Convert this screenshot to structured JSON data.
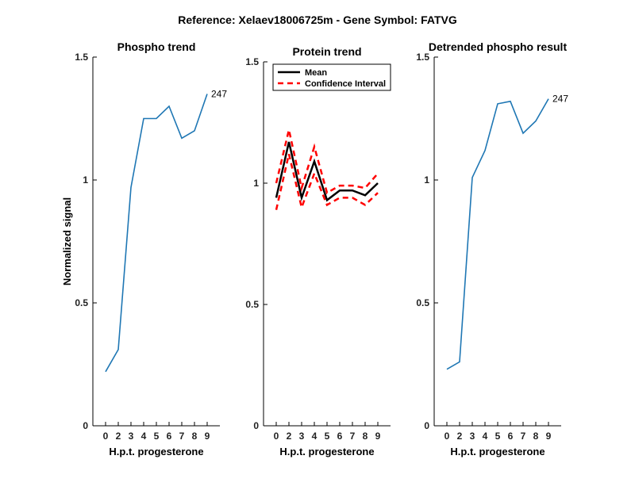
{
  "figure": {
    "suptitle": "Reference:  Xelaev18006725m - Gene Symbol:  FATVG"
  },
  "chart_data": [
    {
      "type": "line",
      "title": "Phospho trend",
      "xlabel": "H.p.t. progesterone",
      "ylabel": "Normalized signal",
      "categories": [
        "0",
        "2",
        "3",
        "4",
        "5",
        "6",
        "7",
        "8",
        "9"
      ],
      "ylim": [
        0,
        1.5
      ],
      "yticks": [
        0,
        0.5,
        1,
        1.5
      ],
      "ytick_labels": [
        "0",
        "0.5",
        "1",
        "1.5"
      ],
      "series": [
        {
          "values": [
            0.22,
            0.31,
            0.97,
            1.25,
            1.25,
            1.3,
            1.17,
            1.2,
            1.35
          ],
          "color": "#1f77b4",
          "style": "solid"
        }
      ],
      "annotation": "247"
    },
    {
      "type": "line",
      "title": "Protein trend",
      "xlabel": "H.p.t. progesterone",
      "ylabel": "",
      "categories": [
        "0",
        "2",
        "3",
        "4",
        "5",
        "6",
        "7",
        "8",
        "9"
      ],
      "ylim": [
        0,
        1.5
      ],
      "yticks": [
        0,
        0.5,
        1,
        1.5
      ],
      "ytick_labels": [
        "0",
        "0.5",
        "1",
        "1.5"
      ],
      "legend": {
        "position": "top-left",
        "entries": [
          "Mean",
          "Confidence Interval"
        ]
      },
      "series": [
        {
          "name": "Mean",
          "values": [
            0.94,
            1.17,
            0.94,
            1.09,
            0.93,
            0.97,
            0.97,
            0.95,
            1.0
          ],
          "color": "#000000",
          "style": "solid"
        },
        {
          "name": "Confidence Interval",
          "values": [
            1.0,
            1.22,
            0.98,
            1.15,
            0.96,
            0.99,
            0.99,
            0.98,
            1.04
          ],
          "color": "#ff0000",
          "style": "dashed"
        },
        {
          "values": [
            0.89,
            1.12,
            0.9,
            1.04,
            0.91,
            0.94,
            0.94,
            0.91,
            0.96
          ],
          "color": "#ff0000",
          "style": "dashed"
        }
      ]
    },
    {
      "type": "line",
      "title": "Detrended phospho result",
      "xlabel": "H.p.t. progesterone",
      "ylabel": "",
      "categories": [
        "0",
        "2",
        "3",
        "4",
        "5",
        "6",
        "7",
        "8",
        "9"
      ],
      "ylim": [
        0,
        1.5
      ],
      "yticks": [
        0,
        0.5,
        1,
        1.5
      ],
      "ytick_labels": [
        "0",
        "0.5",
        "1",
        "1.5"
      ],
      "series": [
        {
          "values": [
            0.23,
            0.26,
            1.01,
            1.12,
            1.31,
            1.32,
            1.19,
            1.24,
            1.33
          ],
          "color": "#1f77b4",
          "style": "solid"
        }
      ],
      "annotation": "247"
    }
  ]
}
